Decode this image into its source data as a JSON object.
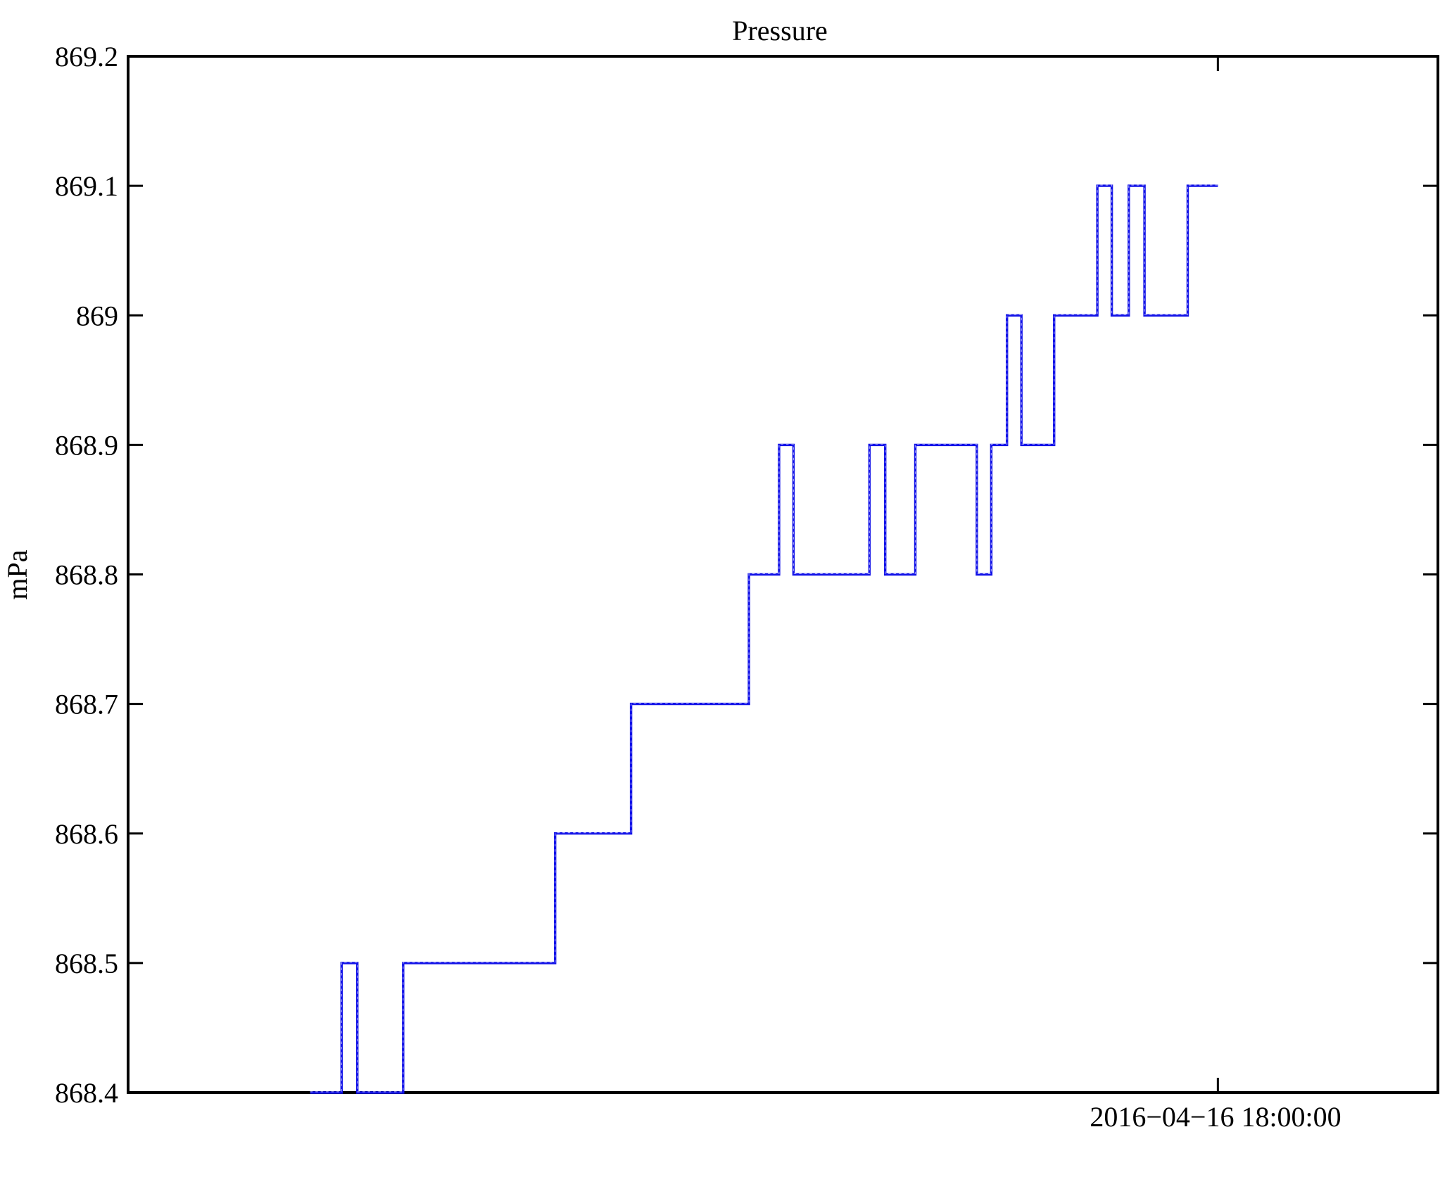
{
  "chart_data": {
    "type": "line",
    "subtype": "step-post",
    "title": "Pressure",
    "ylabel": "mPa",
    "xlabel": "",
    "series": [
      {
        "name": "Pressure",
        "color": "#1313e8",
        "texture_color": "#9a9af5"
      }
    ],
    "ylim": [
      868.4,
      869.2
    ],
    "yticks": [
      868.4,
      868.5,
      868.6,
      868.7,
      868.8,
      868.9,
      869.0,
      869.1,
      869.2
    ],
    "ytick_labels": [
      "868.4",
      "868.5",
      "868.6",
      "868.7",
      "868.8",
      "868.9",
      "869",
      "869.1",
      "869.2"
    ],
    "xtick": {
      "label": "2016−04−16 18:00:00",
      "x_frac": 0.832
    },
    "grid": false,
    "legend": "none",
    "axis_color": "#000000",
    "background_color": "#ffffff",
    "plateaus_note": "each entry = [x_start_fraction_of_plot_width, x_end_fraction, pressure_mPa]",
    "plateaus": [
      [
        0.139,
        0.163,
        868.4
      ],
      [
        0.163,
        0.175,
        868.5
      ],
      [
        0.175,
        0.21,
        868.4
      ],
      [
        0.21,
        0.326,
        868.5
      ],
      [
        0.326,
        0.384,
        868.6
      ],
      [
        0.384,
        0.474,
        868.7
      ],
      [
        0.474,
        0.497,
        868.8
      ],
      [
        0.497,
        0.508,
        868.9
      ],
      [
        0.508,
        0.566,
        868.8
      ],
      [
        0.566,
        0.578,
        868.9
      ],
      [
        0.578,
        0.601,
        868.8
      ],
      [
        0.601,
        0.648,
        868.9
      ],
      [
        0.648,
        0.659,
        868.8
      ],
      [
        0.659,
        0.671,
        868.9
      ],
      [
        0.671,
        0.682,
        869.0
      ],
      [
        0.682,
        0.707,
        868.9
      ],
      [
        0.707,
        0.74,
        869.0
      ],
      [
        0.74,
        0.751,
        869.1
      ],
      [
        0.751,
        0.764,
        869.0
      ],
      [
        0.764,
        0.776,
        869.1
      ],
      [
        0.776,
        0.809,
        869.0
      ],
      [
        0.809,
        0.832,
        869.1
      ]
    ]
  }
}
